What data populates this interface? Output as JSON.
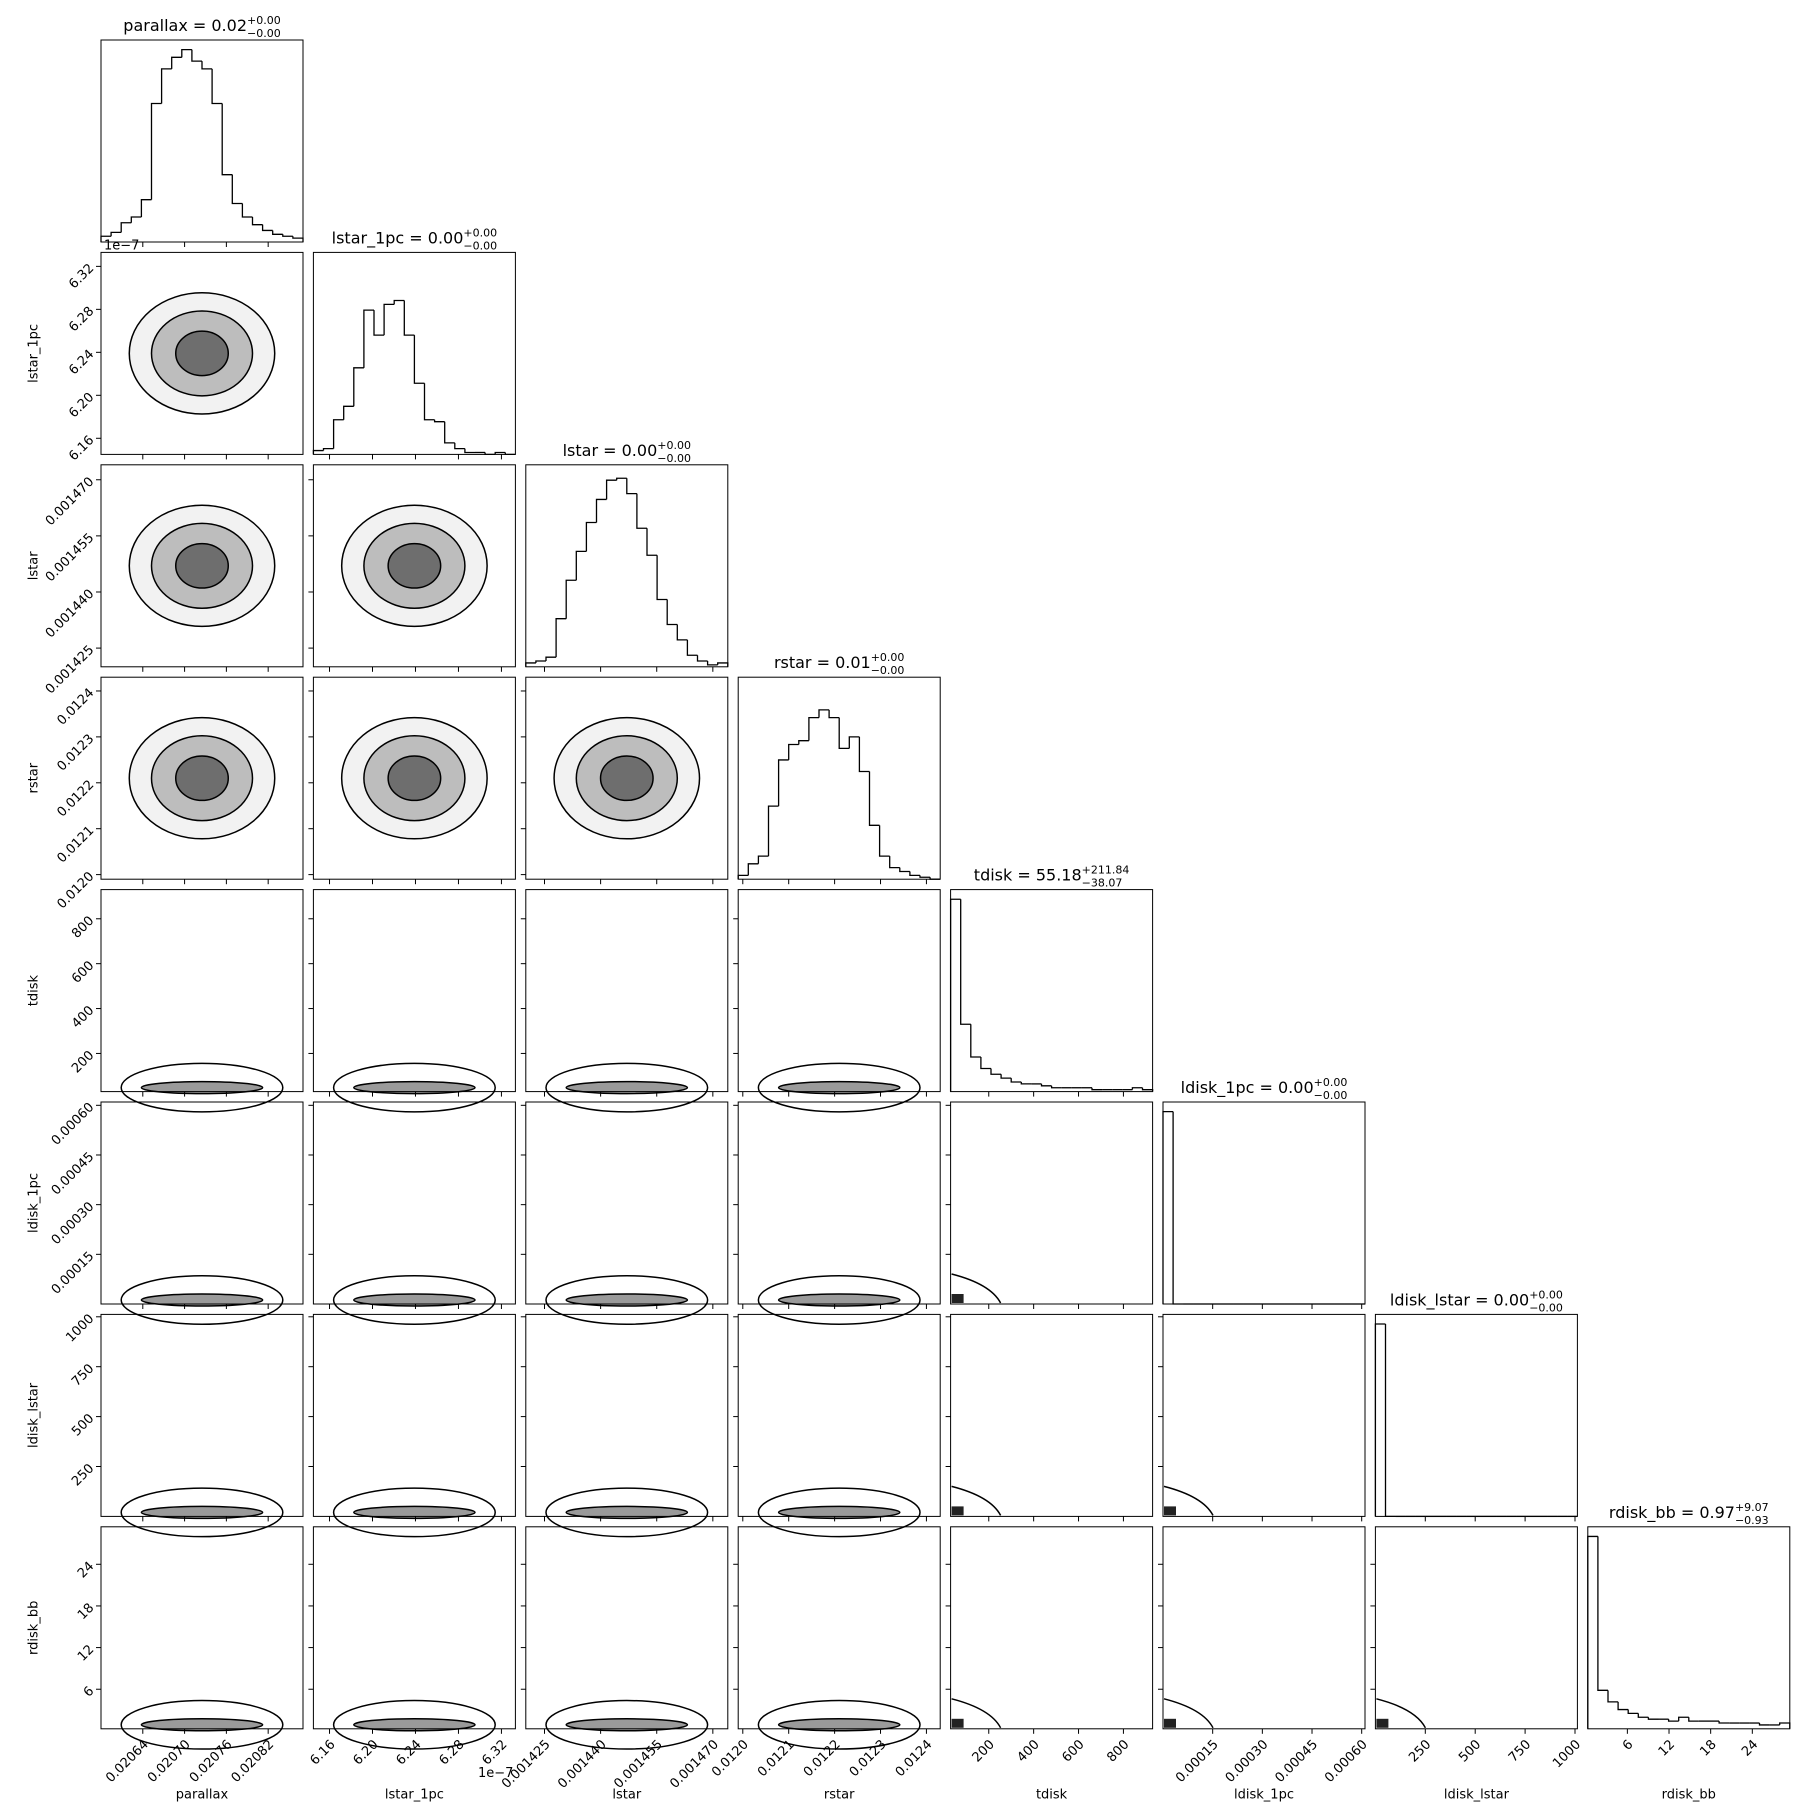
{
  "chart_data": {
    "type": "corner",
    "color": "#000000",
    "hist_ylim": [
      0,
      105
    ],
    "parameters": [
      {
        "name": "parallax",
        "title": "parallax = 0.02",
        "title_plus": "+0.00",
        "title_minus": "−0.00",
        "xlim": [
          0.02058,
          0.02087
        ],
        "xticks": [
          0.02064,
          {
            "value": 0.0207,
            "label": "0.02070"
          },
          0.02076,
          0.02082
        ],
        "bins": [
          0.02058,
          0.0205945,
          0.020609,
          0.0206235,
          0.020638,
          0.0206525,
          0.020667,
          0.0206815,
          0.020696,
          0.0207105,
          0.020725,
          0.0207395,
          0.020754,
          0.0207685,
          0.020783,
          0.0207975,
          0.020812,
          0.0208265,
          0.020841,
          0.0208555,
          0.02087
        ],
        "values": [
          3,
          5,
          10,
          13,
          22,
          72,
          90,
          96,
          100,
          94,
          90,
          72,
          35,
          20,
          13,
          9,
          6,
          4,
          3,
          2
        ]
      },
      {
        "name": "lstar_1pc",
        "title": "lstar_1pc = 0.00",
        "title_plus": "+0.00",
        "title_minus": "−0.00",
        "offset": "1e−7",
        "xlim": [
          6.145,
          6.333
        ],
        "xticks": [
          6.16,
          {
            "value": 6.2,
            "label": "6.20"
          },
          6.24,
          6.28,
          6.32
        ],
        "bins": [
          6.145,
          6.1544,
          6.1638,
          6.1732,
          6.1826,
          6.192,
          6.2014,
          6.2108,
          6.2202,
          6.2296,
          6.239,
          6.2484,
          6.2578,
          6.2672,
          6.2766,
          6.286,
          6.2954,
          6.3048,
          6.3142,
          6.3236,
          6.333
        ],
        "values": [
          2,
          3,
          18,
          25,
          45,
          75,
          62,
          78,
          80,
          62,
          37,
          18,
          17,
          6,
          3,
          1,
          1,
          0,
          1,
          0
        ]
      },
      {
        "name": "lstar",
        "title": "lstar = 0.00",
        "title_plus": "+0.00",
        "title_minus": "−0.00",
        "xlim": [
          0.00142,
          0.001474
        ],
        "xticks": [
          0.001425,
          {
            "value": 0.00144,
            "label": "0.001440"
          },
          0.001455,
          {
            "value": 0.00147,
            "label": "0.001470"
          }
        ],
        "bins": [
          0.00142,
          0.0014227,
          0.0014254,
          0.0014281,
          0.0014308,
          0.0014335,
          0.0014362,
          0.0014389,
          0.0014416,
          0.0014443,
          0.001447,
          0.0014497,
          0.0014524,
          0.0014551,
          0.0014578,
          0.0014605,
          0.0014632,
          0.0014659,
          0.0014686,
          0.0014713,
          0.001474
        ],
        "values": [
          2,
          3,
          5,
          25,
          45,
          60,
          75,
          87,
          97,
          98,
          90,
          72,
          58,
          35,
          22,
          14,
          6,
          3,
          1,
          2
        ]
      },
      {
        "name": "rstar",
        "title": "rstar = 0.01",
        "title_plus": "+0.00",
        "title_minus": "−0.00",
        "xlim": [
          0.01199,
          0.01243
        ],
        "xticks": [
          {
            "value": 0.012,
            "label": "0.0120"
          },
          0.0121,
          0.0122,
          0.0123,
          0.0124
        ],
        "bins": [
          0.01199,
          0.012012,
          0.012034,
          0.012056,
          0.012078,
          0.0121,
          0.012122,
          0.012144,
          0.012166,
          0.012188,
          0.01221,
          0.012232,
          0.012254,
          0.012276,
          0.012298,
          0.01232,
          0.012342,
          0.012364,
          0.012386,
          0.012408,
          0.01243
        ],
        "values": [
          2,
          8,
          12,
          38,
          62,
          70,
          72,
          84,
          88,
          84,
          68,
          74,
          56,
          28,
          12,
          6,
          4,
          2,
          1,
          0
        ]
      },
      {
        "name": "tdisk",
        "title": "tdisk = 55.18",
        "title_plus": "+211.84",
        "title_minus": "−38.07",
        "xlim": [
          30,
          930
        ],
        "xticks": [
          200,
          400,
          600,
          800
        ],
        "bins": [
          30,
          75,
          120,
          165,
          210,
          255,
          300,
          345,
          390,
          435,
          480,
          525,
          570,
          615,
          660,
          705,
          750,
          795,
          840,
          885,
          930
        ],
        "values": [
          100,
          35,
          18,
          12,
          9,
          7,
          5,
          4,
          4,
          3,
          2,
          2,
          2,
          2,
          1,
          1,
          1,
          1,
          2,
          1
        ]
      },
      {
        "name": "ldisk_1pc",
        "title": "ldisk_1pc = 0.00",
        "title_plus": "+0.00",
        "title_minus": "−0.00",
        "xlim": [
          0,
          0.00061
        ],
        "xticks": [
          0.00015,
          {
            "value": 0.0003,
            "label": "0.00030"
          },
          0.00045,
          {
            "value": 0.0006,
            "label": "0.00060"
          }
        ],
        "bins": [
          0,
          3.05e-05,
          6.1e-05,
          9.15e-05,
          0.000122,
          0.0001525,
          0.000183,
          0.0002135,
          0.000244,
          0.0002745,
          0.000305,
          0.0003355,
          0.000366,
          0.0003965,
          0.000427,
          0.0004575,
          0.000488,
          0.0005185,
          0.000549,
          0.0005795,
          0.00061
        ],
        "values": [
          100,
          0,
          0,
          0,
          0,
          0,
          0,
          0,
          0,
          0,
          0,
          0,
          0,
          0,
          0,
          0,
          0,
          0,
          0,
          0
        ]
      },
      {
        "name": "ldisk_lstar",
        "title": "ldisk_lstar = 0.00",
        "title_plus": "+0.00",
        "title_minus": "−0.00",
        "xlim": [
          0,
          1012
        ],
        "xticks": [
          250,
          500,
          750,
          1000
        ],
        "bins": [
          0,
          50.6,
          101.2,
          151.8,
          202.4,
          253,
          303.6,
          354.2,
          404.8,
          455.4,
          506,
          556.6,
          607.2,
          657.8,
          708.4,
          759,
          809.6,
          860.2,
          910.8,
          961.4,
          1012
        ],
        "values": [
          100,
          0,
          0,
          0,
          0,
          0,
          0,
          0,
          0,
          0,
          0,
          0,
          0,
          0,
          0,
          0,
          0,
          0,
          0,
          0
        ]
      },
      {
        "name": "rdisk_bb",
        "title": "rdisk_bb = 0.97",
        "title_plus": "+9.07",
        "title_minus": "−0.93",
        "xlim": [
          0.3,
          29.4
        ],
        "xticks": [
          6,
          12,
          18,
          24
        ],
        "bins": [
          0.3,
          1.755,
          3.21,
          4.665,
          6.12,
          7.575,
          9.03,
          10.485,
          11.94,
          13.395,
          14.85,
          16.305,
          17.76,
          19.215,
          20.67,
          22.125,
          23.58,
          25.035,
          26.49,
          27.945,
          29.4
        ],
        "values": [
          100,
          20,
          14,
          10,
          8,
          6,
          5,
          5,
          4,
          6,
          4,
          4,
          4,
          3,
          3,
          3,
          3,
          2,
          2,
          3
        ]
      }
    ]
  }
}
